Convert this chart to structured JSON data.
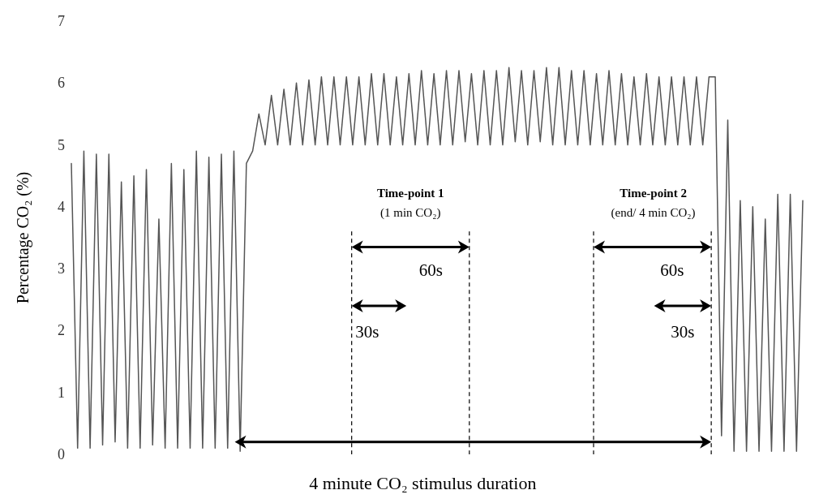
{
  "chart_data": {
    "type": "line",
    "ylabel": "Percentage CO₂ (%)",
    "ylim": [
      0,
      7
    ],
    "yticks": [
      0,
      1,
      2,
      3,
      4,
      5,
      6,
      7
    ],
    "tick_labels": "y",
    "grid": false,
    "marker": "none",
    "line_style": "solid",
    "categories": [
      null,
      null,
      null,
      null,
      null,
      null,
      null,
      null,
      null,
      null,
      null,
      null,
      null,
      null,
      null,
      null,
      null,
      null,
      null,
      null,
      null,
      null,
      null,
      null,
      null,
      null,
      null,
      null,
      null,
      null,
      null,
      null,
      null,
      null,
      null,
      null,
      null,
      null,
      null,
      null,
      null,
      null,
      null,
      null,
      null,
      null,
      null,
      null,
      null,
      null,
      null,
      null,
      null,
      null,
      null,
      null,
      null,
      null,
      null,
      null,
      null,
      null,
      null,
      null,
      null,
      null,
      null,
      null,
      null,
      null,
      null,
      null,
      null,
      null,
      null,
      null,
      null,
      null,
      null,
      null,
      null,
      null,
      null,
      null,
      null,
      null,
      null,
      null,
      null,
      null,
      null,
      null,
      null,
      null,
      null,
      null,
      null,
      null,
      null,
      null,
      null,
      null,
      null,
      null,
      null,
      null,
      null,
      null,
      null,
      null,
      null,
      null,
      null,
      null,
      null,
      null,
      null,
      null
    ],
    "series": [
      {
        "color": "#555555",
        "values": [
          4.7,
          0.1,
          4.9,
          0.1,
          4.85,
          0.15,
          4.85,
          0.2,
          4.4,
          0.1,
          4.5,
          0.1,
          4.6,
          0.15,
          3.8,
          0.1,
          4.7,
          0.1,
          4.6,
          0.1,
          4.9,
          0.1,
          4.8,
          0.1,
          4.85,
          0.1,
          4.9,
          0.05,
          4.7,
          4.9,
          5.5,
          5.0,
          5.8,
          5.0,
          5.9,
          5.0,
          6.0,
          5.0,
          6.05,
          5.0,
          6.1,
          5.0,
          6.1,
          5.0,
          6.1,
          5.0,
          6.1,
          5.0,
          6.15,
          5.0,
          6.15,
          5.0,
          6.1,
          5.0,
          6.15,
          5.0,
          6.2,
          5.0,
          6.15,
          5.0,
          6.2,
          5.0,
          6.2,
          5.05,
          6.15,
          5.0,
          6.2,
          5.0,
          6.2,
          5.0,
          6.25,
          5.05,
          6.2,
          5.0,
          6.2,
          5.05,
          6.25,
          5.0,
          6.25,
          5.0,
          6.2,
          5.0,
          6.2,
          5.0,
          6.15,
          5.0,
          6.2,
          5.0,
          6.15,
          5.0,
          6.1,
          5.0,
          6.15,
          5.0,
          6.1,
          5.0,
          6.1,
          5.0,
          6.1,
          5.0,
          6.1,
          5.0,
          6.1,
          6.1,
          0.3,
          5.4,
          0.05,
          4.1,
          0.05,
          4.0,
          0.05,
          3.8,
          0.05,
          4.2,
          0.05,
          4.2,
          0.05,
          4.1
        ]
      }
    ],
    "annotations": [
      "Time-point 1",
      "(1 min CO₂)",
      "Time-point 2",
      "(end/ 4 min CO₂)",
      "60s",
      "30s",
      "60s",
      "30s",
      "4 minute CO₂ stimulus duration"
    ]
  }
}
